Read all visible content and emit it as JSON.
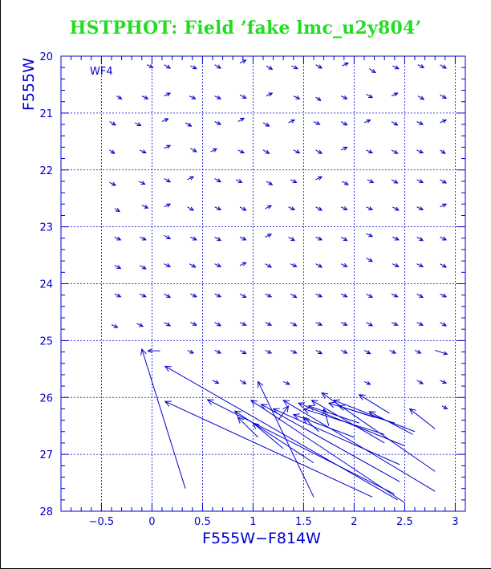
{
  "chart_data": {
    "type": "vector",
    "title": "HSTPHOT: Field ’fake lmc_u2y804’",
    "panel_label": "WF4",
    "xlabel": "F555W−F814W",
    "ylabel": "F555W",
    "xlim": [
      -0.9,
      3.1
    ],
    "ylim": [
      28,
      20
    ],
    "y_inverted": true,
    "grid": true,
    "xticks": [
      -0.5,
      0,
      0.5,
      1,
      1.5,
      2,
      2.5,
      3
    ],
    "xtick_labels": [
      "−0.5",
      "0",
      "0.5",
      "1",
      "1.5",
      "2",
      "2.5",
      "3"
    ],
    "yticks": [
      20,
      21,
      22,
      23,
      24,
      25,
      26,
      27,
      28
    ],
    "ytick_labels": [
      "20",
      "21",
      "22",
      "23",
      "24",
      "25",
      "26",
      "27",
      "28"
    ],
    "colors": {
      "title": "#22dd22",
      "axes": "#0000cc",
      "vectors": "#0000cc"
    },
    "long_vectors": [
      {
        "x0": 0.33,
        "y0": 27.6,
        "x1": -0.1,
        "y1": 25.15
      },
      {
        "x0": 2.18,
        "y0": 27.75,
        "x1": 0.13,
        "y1": 26.07
      },
      {
        "x0": 2.43,
        "y0": 27.8,
        "x1": 0.13,
        "y1": 25.45
      },
      {
        "x0": 2.4,
        "y0": 27.7,
        "x1": 0.55,
        "y1": 26.04
      },
      {
        "x0": 1.6,
        "y0": 27.75,
        "x1": 1.05,
        "y1": 25.72
      },
      {
        "x0": 1.6,
        "y0": 27.15,
        "x1": 0.82,
        "y1": 26.24
      },
      {
        "x0": 2.5,
        "y0": 27.85,
        "x1": 0.98,
        "y1": 26.05
      },
      {
        "x0": 2.45,
        "y0": 27.48,
        "x1": 1.08,
        "y1": 26.12
      },
      {
        "x0": 2.45,
        "y0": 27.18,
        "x1": 1.2,
        "y1": 26.2
      },
      {
        "x0": 2.8,
        "y0": 27.65,
        "x1": 1.3,
        "y1": 26.05
      },
      {
        "x0": 2.5,
        "y0": 26.85,
        "x1": 1.45,
        "y1": 26.1
      },
      {
        "x0": 2.3,
        "y0": 26.65,
        "x1": 1.5,
        "y1": 26.2
      },
      {
        "x0": 2.8,
        "y0": 27.3,
        "x1": 1.68,
        "y1": 25.92
      },
      {
        "x0": 2.3,
        "y0": 26.8,
        "x1": 1.58,
        "y1": 26.05
      },
      {
        "x0": 2.0,
        "y0": 26.7,
        "x1": 1.4,
        "y1": 26.3
      },
      {
        "x0": 2.6,
        "y0": 26.6,
        "x1": 1.8,
        "y1": 26.05
      },
      {
        "x0": 2.4,
        "y0": 26.45,
        "x1": 1.75,
        "y1": 26.1
      },
      {
        "x0": 2.2,
        "y0": 26.35,
        "x1": 1.85,
        "y1": 26.15
      },
      {
        "x0": 2.05,
        "y0": 26.45,
        "x1": 1.55,
        "y1": 26.15
      },
      {
        "x0": 2.35,
        "y0": 26.28,
        "x1": 2.05,
        "y1": 25.95
      },
      {
        "x0": 2.58,
        "y0": 26.65,
        "x1": 2.15,
        "y1": 26.25
      },
      {
        "x0": 2.8,
        "y0": 26.55,
        "x1": 2.55,
        "y1": 26.2
      },
      {
        "x0": 1.05,
        "y0": 26.7,
        "x1": 0.85,
        "y1": 26.35
      },
      {
        "x0": 1.3,
        "y0": 26.9,
        "x1": 1.0,
        "y1": 26.45
      },
      {
        "x0": 1.25,
        "y0": 26.4,
        "x1": 1.35,
        "y1": 26.15
      },
      {
        "x0": 1.65,
        "y0": 26.6,
        "x1": 1.5,
        "y1": 26.35
      },
      {
        "x0": 1.75,
        "y0": 26.5,
        "x1": 1.7,
        "y1": 26.2
      }
    ],
    "short_vectors": [
      {
        "x": -0.05,
        "y": 20.15,
        "dx": 0.06,
        "dy": 0.05
      },
      {
        "x": 0.12,
        "y": 20.15,
        "dx": 0.06,
        "dy": 0.06
      },
      {
        "x": 0.38,
        "y": 20.17,
        "dx": 0.06,
        "dy": 0.05
      },
      {
        "x": 0.62,
        "y": 20.15,
        "dx": 0.06,
        "dy": 0.06
      },
      {
        "x": 0.87,
        "y": 20.12,
        "dx": 0.06,
        "dy": -0.05
      },
      {
        "x": 1.13,
        "y": 20.17,
        "dx": 0.06,
        "dy": 0.06
      },
      {
        "x": 1.38,
        "y": 20.17,
        "dx": 0.06,
        "dy": 0.05
      },
      {
        "x": 1.62,
        "y": 20.15,
        "dx": 0.06,
        "dy": 0.06
      },
      {
        "x": 1.88,
        "y": 20.17,
        "dx": 0.06,
        "dy": -0.05
      },
      {
        "x": 2.15,
        "y": 20.22,
        "dx": 0.06,
        "dy": 0.07
      },
      {
        "x": 2.38,
        "y": 20.17,
        "dx": 0.06,
        "dy": 0.05
      },
      {
        "x": 2.63,
        "y": 20.15,
        "dx": 0.06,
        "dy": 0.05
      },
      {
        "x": 2.85,
        "y": 20.15,
        "dx": 0.06,
        "dy": 0.06
      },
      {
        "x": -0.35,
        "y": 20.7,
        "dx": 0.05,
        "dy": 0.05
      },
      {
        "x": -0.1,
        "y": 20.7,
        "dx": 0.06,
        "dy": 0.05
      },
      {
        "x": 0.12,
        "y": 20.7,
        "dx": 0.06,
        "dy": -0.05
      },
      {
        "x": 0.37,
        "y": 20.7,
        "dx": 0.06,
        "dy": 0.05
      },
      {
        "x": 0.62,
        "y": 20.7,
        "dx": 0.06,
        "dy": 0.05
      },
      {
        "x": 0.87,
        "y": 20.68,
        "dx": 0.06,
        "dy": 0.06
      },
      {
        "x": 1.13,
        "y": 20.7,
        "dx": 0.06,
        "dy": -0.05
      },
      {
        "x": 1.4,
        "y": 20.7,
        "dx": 0.06,
        "dy": 0.05
      },
      {
        "x": 1.62,
        "y": 20.72,
        "dx": 0.05,
        "dy": 0.06
      },
      {
        "x": 1.87,
        "y": 20.7,
        "dx": 0.06,
        "dy": 0.05
      },
      {
        "x": 2.12,
        "y": 20.67,
        "dx": 0.06,
        "dy": 0.06
      },
      {
        "x": 2.37,
        "y": 20.7,
        "dx": 0.06,
        "dy": -0.05
      },
      {
        "x": 2.63,
        "y": 20.7,
        "dx": 0.06,
        "dy": 0.06
      },
      {
        "x": 2.85,
        "y": 20.68,
        "dx": 0.06,
        "dy": 0.06
      },
      {
        "x": -0.42,
        "y": 21.15,
        "dx": 0.06,
        "dy": 0.06
      },
      {
        "x": -0.17,
        "y": 21.17,
        "dx": 0.06,
        "dy": 0.05
      },
      {
        "x": 0.1,
        "y": 21.15,
        "dx": 0.06,
        "dy": -0.05
      },
      {
        "x": 0.33,
        "y": 21.17,
        "dx": 0.06,
        "dy": 0.06
      },
      {
        "x": 0.62,
        "y": 21.15,
        "dx": 0.06,
        "dy": 0.05
      },
      {
        "x": 0.85,
        "y": 21.15,
        "dx": 0.06,
        "dy": -0.06
      },
      {
        "x": 1.1,
        "y": 21.17,
        "dx": 0.06,
        "dy": 0.06
      },
      {
        "x": 1.35,
        "y": 21.17,
        "dx": 0.06,
        "dy": -0.05
      },
      {
        "x": 1.6,
        "y": 21.15,
        "dx": 0.06,
        "dy": 0.05
      },
      {
        "x": 1.87,
        "y": 21.15,
        "dx": 0.06,
        "dy": 0.06
      },
      {
        "x": 2.1,
        "y": 21.17,
        "dx": 0.06,
        "dy": -0.05
      },
      {
        "x": 2.37,
        "y": 21.15,
        "dx": 0.06,
        "dy": 0.06
      },
      {
        "x": 2.62,
        "y": 21.15,
        "dx": 0.06,
        "dy": 0.05
      },
      {
        "x": 2.85,
        "y": 21.17,
        "dx": 0.06,
        "dy": -0.05
      },
      {
        "x": -0.42,
        "y": 21.65,
        "dx": 0.05,
        "dy": 0.06
      },
      {
        "x": -0.12,
        "y": 21.65,
        "dx": 0.06,
        "dy": 0.05
      },
      {
        "x": 0.12,
        "y": 21.62,
        "dx": 0.06,
        "dy": -0.05
      },
      {
        "x": 0.38,
        "y": 21.62,
        "dx": 0.06,
        "dy": 0.06
      },
      {
        "x": 0.58,
        "y": 21.68,
        "dx": 0.06,
        "dy": -0.05
      },
      {
        "x": 0.85,
        "y": 21.65,
        "dx": 0.06,
        "dy": 0.05
      },
      {
        "x": 1.1,
        "y": 21.65,
        "dx": 0.06,
        "dy": 0.06
      },
      {
        "x": 1.4,
        "y": 21.65,
        "dx": 0.06,
        "dy": 0.05
      },
      {
        "x": 1.62,
        "y": 21.65,
        "dx": 0.06,
        "dy": 0.06
      },
      {
        "x": 1.87,
        "y": 21.65,
        "dx": 0.06,
        "dy": -0.05
      },
      {
        "x": 2.12,
        "y": 21.65,
        "dx": 0.06,
        "dy": 0.05
      },
      {
        "x": 2.37,
        "y": 21.65,
        "dx": 0.06,
        "dy": 0.06
      },
      {
        "x": 2.62,
        "y": 21.65,
        "dx": 0.06,
        "dy": 0.05
      },
      {
        "x": 2.85,
        "y": 21.65,
        "dx": 0.05,
        "dy": 0.06
      },
      {
        "x": -0.42,
        "y": 22.22,
        "dx": 0.06,
        "dy": 0.05
      },
      {
        "x": -0.13,
        "y": 22.2,
        "dx": 0.06,
        "dy": 0.05
      },
      {
        "x": 0.12,
        "y": 22.15,
        "dx": 0.06,
        "dy": 0.06
      },
      {
        "x": 0.35,
        "y": 22.17,
        "dx": 0.06,
        "dy": -0.05
      },
      {
        "x": 0.62,
        "y": 22.15,
        "dx": 0.06,
        "dy": 0.06
      },
      {
        "x": 0.83,
        "y": 22.17,
        "dx": 0.06,
        "dy": 0.05
      },
      {
        "x": 1.13,
        "y": 22.2,
        "dx": 0.06,
        "dy": 0.06
      },
      {
        "x": 1.37,
        "y": 22.17,
        "dx": 0.06,
        "dy": 0.05
      },
      {
        "x": 1.62,
        "y": 22.17,
        "dx": 0.06,
        "dy": -0.05
      },
      {
        "x": 1.88,
        "y": 22.2,
        "dx": 0.06,
        "dy": 0.06
      },
      {
        "x": 2.13,
        "y": 22.17,
        "dx": 0.06,
        "dy": 0.05
      },
      {
        "x": 2.37,
        "y": 22.17,
        "dx": 0.06,
        "dy": 0.06
      },
      {
        "x": 2.62,
        "y": 22.17,
        "dx": 0.06,
        "dy": 0.05
      },
      {
        "x": 2.85,
        "y": 22.17,
        "dx": 0.06,
        "dy": 0.06
      },
      {
        "x": -0.37,
        "y": 22.68,
        "dx": 0.05,
        "dy": 0.05
      },
      {
        "x": -0.1,
        "y": 22.62,
        "dx": 0.06,
        "dy": 0.05
      },
      {
        "x": 0.12,
        "y": 22.65,
        "dx": 0.06,
        "dy": -0.05
      },
      {
        "x": 0.35,
        "y": 22.65,
        "dx": 0.06,
        "dy": 0.06
      },
      {
        "x": 0.62,
        "y": 22.65,
        "dx": 0.06,
        "dy": 0.05
      },
      {
        "x": 0.87,
        "y": 22.65,
        "dx": 0.06,
        "dy": 0.06
      },
      {
        "x": 1.12,
        "y": 22.68,
        "dx": 0.06,
        "dy": -0.05
      },
      {
        "x": 1.35,
        "y": 22.65,
        "dx": 0.06,
        "dy": 0.05
      },
      {
        "x": 1.62,
        "y": 22.65,
        "dx": 0.06,
        "dy": 0.06
      },
      {
        "x": 1.87,
        "y": 22.65,
        "dx": 0.06,
        "dy": 0.05
      },
      {
        "x": 2.12,
        "y": 22.65,
        "dx": 0.06,
        "dy": 0.05
      },
      {
        "x": 2.38,
        "y": 22.65,
        "dx": 0.06,
        "dy": 0.06
      },
      {
        "x": 2.62,
        "y": 22.65,
        "dx": 0.06,
        "dy": 0.05
      },
      {
        "x": 2.85,
        "y": 22.65,
        "dx": 0.06,
        "dy": -0.05
      },
      {
        "x": -0.37,
        "y": 23.18,
        "dx": 0.06,
        "dy": 0.05
      },
      {
        "x": -0.12,
        "y": 23.18,
        "dx": 0.06,
        "dy": 0.05
      },
      {
        "x": 0.12,
        "y": 23.15,
        "dx": 0.06,
        "dy": 0.06
      },
      {
        "x": 0.38,
        "y": 23.18,
        "dx": 0.06,
        "dy": 0.05
      },
      {
        "x": 0.62,
        "y": 23.18,
        "dx": 0.06,
        "dy": 0.06
      },
      {
        "x": 0.87,
        "y": 23.18,
        "dx": 0.06,
        "dy": 0.05
      },
      {
        "x": 1.12,
        "y": 23.18,
        "dx": 0.06,
        "dy": -0.05
      },
      {
        "x": 1.35,
        "y": 23.18,
        "dx": 0.06,
        "dy": 0.06
      },
      {
        "x": 1.62,
        "y": 23.18,
        "dx": 0.06,
        "dy": 0.05
      },
      {
        "x": 1.87,
        "y": 23.18,
        "dx": 0.06,
        "dy": 0.06
      },
      {
        "x": 2.12,
        "y": 23.12,
        "dx": 0.06,
        "dy": 0.05
      },
      {
        "x": 2.38,
        "y": 23.18,
        "dx": 0.06,
        "dy": 0.05
      },
      {
        "x": 2.62,
        "y": 23.18,
        "dx": 0.06,
        "dy": 0.06
      },
      {
        "x": 2.85,
        "y": 23.18,
        "dx": 0.06,
        "dy": 0.05
      },
      {
        "x": -0.37,
        "y": 23.68,
        "dx": 0.06,
        "dy": 0.05
      },
      {
        "x": -0.12,
        "y": 23.68,
        "dx": 0.06,
        "dy": 0.06
      },
      {
        "x": 0.12,
        "y": 23.65,
        "dx": 0.06,
        "dy": 0.05
      },
      {
        "x": 0.37,
        "y": 23.65,
        "dx": 0.06,
        "dy": 0.06
      },
      {
        "x": 0.62,
        "y": 23.65,
        "dx": 0.06,
        "dy": 0.05
      },
      {
        "x": 0.87,
        "y": 23.68,
        "dx": 0.06,
        "dy": -0.05
      },
      {
        "x": 1.12,
        "y": 23.65,
        "dx": 0.06,
        "dy": 0.06
      },
      {
        "x": 1.37,
        "y": 23.65,
        "dx": 0.06,
        "dy": 0.05
      },
      {
        "x": 1.62,
        "y": 23.65,
        "dx": 0.06,
        "dy": 0.06
      },
      {
        "x": 1.87,
        "y": 23.65,
        "dx": 0.06,
        "dy": 0.05
      },
      {
        "x": 2.12,
        "y": 23.55,
        "dx": 0.06,
        "dy": 0.06
      },
      {
        "x": 2.38,
        "y": 23.65,
        "dx": 0.06,
        "dy": 0.05
      },
      {
        "x": 2.62,
        "y": 23.65,
        "dx": 0.06,
        "dy": 0.05
      },
      {
        "x": 2.85,
        "y": 23.65,
        "dx": 0.06,
        "dy": 0.06
      },
      {
        "x": -0.37,
        "y": 24.18,
        "dx": 0.06,
        "dy": 0.05
      },
      {
        "x": -0.12,
        "y": 24.18,
        "dx": 0.06,
        "dy": 0.05
      },
      {
        "x": 0.12,
        "y": 24.18,
        "dx": 0.06,
        "dy": 0.06
      },
      {
        "x": 0.38,
        "y": 24.18,
        "dx": 0.06,
        "dy": 0.05
      },
      {
        "x": 0.62,
        "y": 24.18,
        "dx": 0.06,
        "dy": 0.05
      },
      {
        "x": 0.87,
        "y": 24.18,
        "dx": 0.06,
        "dy": 0.06
      },
      {
        "x": 1.12,
        "y": 24.18,
        "dx": 0.06,
        "dy": 0.05
      },
      {
        "x": 1.37,
        "y": 24.18,
        "dx": 0.06,
        "dy": 0.06
      },
      {
        "x": 1.62,
        "y": 24.18,
        "dx": 0.06,
        "dy": 0.05
      },
      {
        "x": 1.87,
        "y": 24.18,
        "dx": 0.06,
        "dy": 0.05
      },
      {
        "x": 2.12,
        "y": 24.18,
        "dx": 0.06,
        "dy": 0.06
      },
      {
        "x": 2.37,
        "y": 24.18,
        "dx": 0.06,
        "dy": 0.05
      },
      {
        "x": 2.62,
        "y": 24.18,
        "dx": 0.06,
        "dy": 0.06
      },
      {
        "x": 2.85,
        "y": 24.18,
        "dx": 0.06,
        "dy": 0.05
      },
      {
        "x": -0.4,
        "y": 24.72,
        "dx": 0.06,
        "dy": 0.05
      },
      {
        "x": -0.15,
        "y": 24.7,
        "dx": 0.06,
        "dy": 0.05
      },
      {
        "x": 0.12,
        "y": 24.68,
        "dx": 0.06,
        "dy": 0.06
      },
      {
        "x": 0.38,
        "y": 24.68,
        "dx": 0.06,
        "dy": 0.05
      },
      {
        "x": 0.62,
        "y": 24.68,
        "dx": 0.06,
        "dy": 0.06
      },
      {
        "x": 0.87,
        "y": 24.68,
        "dx": 0.06,
        "dy": 0.05
      },
      {
        "x": 1.12,
        "y": 24.68,
        "dx": 0.06,
        "dy": 0.05
      },
      {
        "x": 1.37,
        "y": 24.68,
        "dx": 0.06,
        "dy": 0.06
      },
      {
        "x": 1.62,
        "y": 24.68,
        "dx": 0.06,
        "dy": 0.05
      },
      {
        "x": 1.87,
        "y": 24.68,
        "dx": 0.06,
        "dy": 0.05
      },
      {
        "x": 2.12,
        "y": 24.68,
        "dx": 0.06,
        "dy": 0.06
      },
      {
        "x": 2.37,
        "y": 24.68,
        "dx": 0.06,
        "dy": 0.05
      },
      {
        "x": 2.62,
        "y": 24.68,
        "dx": 0.06,
        "dy": 0.05
      },
      {
        "x": 2.85,
        "y": 24.68,
        "dx": 0.06,
        "dy": 0.06
      },
      {
        "x": 0.08,
        "y": 25.18,
        "dx": -0.12,
        "dy": 0.0
      },
      {
        "x": 0.35,
        "y": 25.17,
        "dx": 0.06,
        "dy": 0.05
      },
      {
        "x": 0.62,
        "y": 25.17,
        "dx": 0.06,
        "dy": 0.05
      },
      {
        "x": 0.87,
        "y": 25.17,
        "dx": 0.06,
        "dy": 0.06
      },
      {
        "x": 1.12,
        "y": 25.17,
        "dx": 0.06,
        "dy": 0.05
      },
      {
        "x": 1.37,
        "y": 25.17,
        "dx": 0.06,
        "dy": 0.05
      },
      {
        "x": 1.62,
        "y": 25.17,
        "dx": 0.06,
        "dy": 0.06
      },
      {
        "x": 1.87,
        "y": 25.17,
        "dx": 0.06,
        "dy": 0.05
      },
      {
        "x": 2.1,
        "y": 25.17,
        "dx": 0.06,
        "dy": 0.06
      },
      {
        "x": 2.35,
        "y": 25.17,
        "dx": 0.06,
        "dy": 0.05
      },
      {
        "x": 2.6,
        "y": 25.17,
        "dx": 0.06,
        "dy": 0.05
      },
      {
        "x": 2.8,
        "y": 25.17,
        "dx": 0.12,
        "dy": 0.07
      },
      {
        "x": 0.6,
        "y": 25.7,
        "dx": 0.06,
        "dy": 0.05
      },
      {
        "x": 0.87,
        "y": 25.7,
        "dx": 0.06,
        "dy": 0.06
      },
      {
        "x": 1.3,
        "y": 25.72,
        "dx": 0.06,
        "dy": 0.05
      },
      {
        "x": 2.1,
        "y": 25.72,
        "dx": 0.06,
        "dy": 0.05
      },
      {
        "x": 2.62,
        "y": 25.7,
        "dx": 0.06,
        "dy": 0.06
      },
      {
        "x": 2.85,
        "y": 25.7,
        "dx": 0.06,
        "dy": 0.05
      },
      {
        "x": 2.87,
        "y": 26.15,
        "dx": 0.05,
        "dy": 0.05
      }
    ]
  }
}
